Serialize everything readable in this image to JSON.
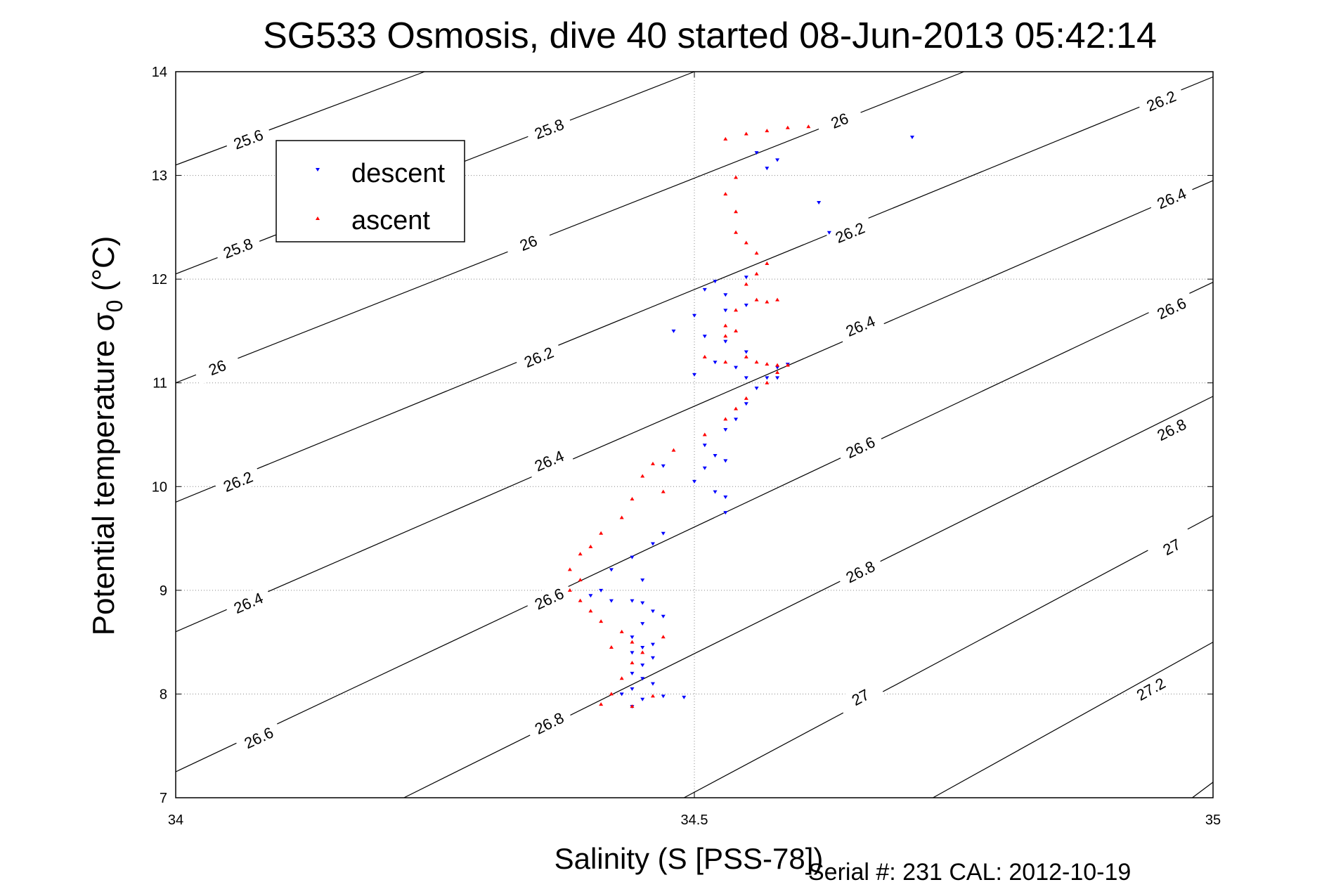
{
  "chart_data": {
    "type": "scatter",
    "title": "SG533 Osmosis, dive 40 started 08-Jun-2013 05:42:14",
    "xlabel": "Salinity (S [PSS-78])",
    "ylabel": "Potential temperature σ0 (°C)",
    "ylabel_main": "Potential temperature ",
    "ylabel_sigma": "σ",
    "ylabel_sub": "0",
    "ylabel_unit": " (°C)",
    "xlim": [
      34,
      35
    ],
    "ylim": [
      7,
      14
    ],
    "xticks": [
      34,
      34.5,
      35
    ],
    "xtick_labels": [
      "34",
      "34.5",
      "35"
    ],
    "yticks": [
      7,
      8,
      9,
      10,
      11,
      12,
      13,
      14
    ],
    "ytick_labels": [
      "7",
      "8",
      "9",
      "10",
      "11",
      "12",
      "13",
      "14"
    ],
    "grid": "dotted",
    "legend_position": "top-left",
    "footer": "Serial #: 231  CAL: 2012-10-19",
    "isopycnals": [
      {
        "sigma": "25.6",
        "points": [
          [
            34.0,
            13.1
          ],
          [
            34.24,
            14.0
          ]
        ],
        "label_at": [
          34.07,
          13.35
        ]
      },
      {
        "sigma": "25.8",
        "points": [
          [
            34.0,
            12.05
          ],
          [
            34.5,
            14.0
          ]
        ],
        "label_at": [
          34.06,
          12.3
        ]
      },
      {
        "sigma": "25.8",
        "points": [
          [
            34.0,
            12.05
          ],
          [
            34.5,
            14.0
          ]
        ],
        "label_at": [
          34.36,
          13.45
        ]
      },
      {
        "sigma": "26",
        "points": [
          [
            34.0,
            11.0
          ],
          [
            34.76,
            14.0
          ]
        ],
        "label_at": [
          34.04,
          11.15
        ]
      },
      {
        "sigma": "26",
        "points": [
          [
            34.0,
            11.0
          ],
          [
            34.76,
            14.0
          ]
        ],
        "label_at": [
          34.34,
          12.35
        ]
      },
      {
        "sigma": "26",
        "points": [
          [
            34.0,
            11.0
          ],
          [
            34.76,
            14.0
          ]
        ],
        "label_at": [
          34.64,
          13.53
        ]
      },
      {
        "sigma": "26.2",
        "points": [
          [
            34.0,
            9.85
          ],
          [
            35.0,
            13.95
          ]
        ],
        "label_at": [
          34.06,
          10.05
        ]
      },
      {
        "sigma": "26.2",
        "points": [
          [
            34.0,
            9.85
          ],
          [
            35.0,
            13.95
          ]
        ],
        "label_at": [
          34.35,
          11.25
        ]
      },
      {
        "sigma": "26.2",
        "points": [
          [
            34.0,
            9.85
          ],
          [
            35.0,
            13.95
          ]
        ],
        "label_at": [
          34.65,
          12.45
        ]
      },
      {
        "sigma": "26.2",
        "points": [
          [
            34.0,
            9.85
          ],
          [
            35.0,
            13.95
          ]
        ],
        "label_at": [
          34.95,
          13.72
        ]
      },
      {
        "sigma": "26.4",
        "points": [
          [
            34.0,
            8.6
          ],
          [
            35.0,
            12.95
          ]
        ],
        "label_at": [
          34.07,
          8.88
        ]
      },
      {
        "sigma": "26.4",
        "points": [
          [
            34.0,
            8.6
          ],
          [
            35.0,
            12.95
          ]
        ],
        "label_at": [
          34.36,
          10.25
        ]
      },
      {
        "sigma": "26.4",
        "points": [
          [
            34.0,
            8.6
          ],
          [
            35.0,
            12.95
          ]
        ],
        "label_at": [
          34.66,
          11.55
        ]
      },
      {
        "sigma": "26.4",
        "points": [
          [
            34.0,
            8.6
          ],
          [
            35.0,
            12.95
          ]
        ],
        "label_at": [
          34.96,
          12.78
        ]
      },
      {
        "sigma": "26.6",
        "points": [
          [
            34.0,
            7.25
          ],
          [
            35.0,
            11.97
          ]
        ],
        "label_at": [
          34.08,
          7.58
        ]
      },
      {
        "sigma": "26.6",
        "points": [
          [
            34.0,
            7.25
          ],
          [
            35.0,
            11.97
          ]
        ],
        "label_at": [
          34.36,
          8.92
        ]
      },
      {
        "sigma": "26.6",
        "points": [
          [
            34.0,
            7.25
          ],
          [
            35.0,
            11.97
          ]
        ],
        "label_at": [
          34.66,
          10.38
        ]
      },
      {
        "sigma": "26.6",
        "points": [
          [
            34.0,
            7.25
          ],
          [
            35.0,
            11.97
          ]
        ],
        "label_at": [
          34.96,
          11.72
        ]
      },
      {
        "sigma": "26.8",
        "points": [
          [
            34.22,
            7.0
          ],
          [
            35.0,
            10.87
          ]
        ],
        "label_at": [
          34.36,
          7.72
        ]
      },
      {
        "sigma": "26.8",
        "points": [
          [
            34.22,
            7.0
          ],
          [
            35.0,
            10.87
          ]
        ],
        "label_at": [
          34.66,
          9.18
        ]
      },
      {
        "sigma": "26.8",
        "points": [
          [
            34.22,
            7.0
          ],
          [
            35.0,
            10.87
          ]
        ],
        "label_at": [
          34.96,
          10.55
        ]
      },
      {
        "sigma": "27",
        "points": [
          [
            34.49,
            7.0
          ],
          [
            35.0,
            9.72
          ]
        ],
        "label_at": [
          34.66,
          7.97
        ]
      },
      {
        "sigma": "27",
        "points": [
          [
            34.49,
            7.0
          ],
          [
            35.0,
            9.72
          ]
        ],
        "label_at": [
          34.96,
          9.42
        ]
      },
      {
        "sigma": "27.2",
        "points": [
          [
            34.73,
            7.0
          ],
          [
            35.0,
            8.5
          ]
        ],
        "label_at": [
          34.94,
          8.05
        ]
      },
      {
        "sigma": "",
        "points": [
          [
            34.98,
            7.0
          ],
          [
            35.0,
            7.15
          ]
        ],
        "label_at": null
      }
    ],
    "series": [
      {
        "name": "descent",
        "color": "#0000ff",
        "marker": "triangle-down",
        "points": [
          [
            34.71,
            13.37
          ],
          [
            34.56,
            13.22
          ],
          [
            34.58,
            13.15
          ],
          [
            34.57,
            13.07
          ],
          [
            34.62,
            12.74
          ],
          [
            34.63,
            12.45
          ],
          [
            34.55,
            12.02
          ],
          [
            34.52,
            11.98
          ],
          [
            34.51,
            11.9
          ],
          [
            34.53,
            11.85
          ],
          [
            34.55,
            11.75
          ],
          [
            34.53,
            11.7
          ],
          [
            34.5,
            11.65
          ],
          [
            34.48,
            11.5
          ],
          [
            34.51,
            11.45
          ],
          [
            34.53,
            11.4
          ],
          [
            34.55,
            11.3
          ],
          [
            34.52,
            11.2
          ],
          [
            34.54,
            11.15
          ],
          [
            34.5,
            11.08
          ],
          [
            34.55,
            11.05
          ],
          [
            34.57,
            11.05
          ],
          [
            34.58,
            11.15
          ],
          [
            34.59,
            11.18
          ],
          [
            34.58,
            11.05
          ],
          [
            34.56,
            10.95
          ],
          [
            34.55,
            10.8
          ],
          [
            34.54,
            10.65
          ],
          [
            34.53,
            10.55
          ],
          [
            34.51,
            10.4
          ],
          [
            34.52,
            10.3
          ],
          [
            34.53,
            10.25
          ],
          [
            34.51,
            10.18
          ],
          [
            34.47,
            10.2
          ],
          [
            34.5,
            10.05
          ],
          [
            34.52,
            9.95
          ],
          [
            34.53,
            9.9
          ],
          [
            34.53,
            9.75
          ],
          [
            34.47,
            9.55
          ],
          [
            34.46,
            9.45
          ],
          [
            34.44,
            9.32
          ],
          [
            34.42,
            9.2
          ],
          [
            34.45,
            9.1
          ],
          [
            34.41,
            9.0
          ],
          [
            34.4,
            8.95
          ],
          [
            34.42,
            8.9
          ],
          [
            34.44,
            8.9
          ],
          [
            34.45,
            8.88
          ],
          [
            34.46,
            8.8
          ],
          [
            34.47,
            8.75
          ],
          [
            34.45,
            8.68
          ],
          [
            34.44,
            8.55
          ],
          [
            34.46,
            8.48
          ],
          [
            34.45,
            8.45
          ],
          [
            34.44,
            8.4
          ],
          [
            34.46,
            8.35
          ],
          [
            34.45,
            8.28
          ],
          [
            34.44,
            8.2
          ],
          [
            34.45,
            8.15
          ],
          [
            34.46,
            8.1
          ],
          [
            34.44,
            8.05
          ],
          [
            34.43,
            8.0
          ],
          [
            34.45,
            7.95
          ],
          [
            34.47,
            7.98
          ],
          [
            34.49,
            7.97
          ],
          [
            34.44,
            7.88
          ]
        ]
      },
      {
        "name": "ascent",
        "color": "#ff0000",
        "marker": "triangle-up",
        "points": [
          [
            34.61,
            13.47
          ],
          [
            34.59,
            13.46
          ],
          [
            34.57,
            13.43
          ],
          [
            34.55,
            13.4
          ],
          [
            34.53,
            13.35
          ],
          [
            34.54,
            12.98
          ],
          [
            34.53,
            12.82
          ],
          [
            34.54,
            12.65
          ],
          [
            34.54,
            12.45
          ],
          [
            34.55,
            12.35
          ],
          [
            34.56,
            12.25
          ],
          [
            34.57,
            12.15
          ],
          [
            34.56,
            12.05
          ],
          [
            34.55,
            11.95
          ],
          [
            34.56,
            11.8
          ],
          [
            34.57,
            11.78
          ],
          [
            34.58,
            11.8
          ],
          [
            34.54,
            11.7
          ],
          [
            34.53,
            11.55
          ],
          [
            34.54,
            11.5
          ],
          [
            34.53,
            11.45
          ],
          [
            34.51,
            11.25
          ],
          [
            34.53,
            11.2
          ],
          [
            34.55,
            11.25
          ],
          [
            34.56,
            11.2
          ],
          [
            34.57,
            11.18
          ],
          [
            34.58,
            11.17
          ],
          [
            34.59,
            11.17
          ],
          [
            34.58,
            11.1
          ],
          [
            34.57,
            11.0
          ],
          [
            34.55,
            10.85
          ],
          [
            34.54,
            10.75
          ],
          [
            34.53,
            10.65
          ],
          [
            34.51,
            10.5
          ],
          [
            34.48,
            10.35
          ],
          [
            34.46,
            10.22
          ],
          [
            34.45,
            10.1
          ],
          [
            34.47,
            9.95
          ],
          [
            34.44,
            9.88
          ],
          [
            34.43,
            9.7
          ],
          [
            34.41,
            9.55
          ],
          [
            34.4,
            9.42
          ],
          [
            34.39,
            9.35
          ],
          [
            34.38,
            9.2
          ],
          [
            34.39,
            9.1
          ],
          [
            34.38,
            9.0
          ],
          [
            34.39,
            8.9
          ],
          [
            34.4,
            8.8
          ],
          [
            34.41,
            8.7
          ],
          [
            34.43,
            8.6
          ],
          [
            34.44,
            8.5
          ],
          [
            34.42,
            8.45
          ],
          [
            34.45,
            8.4
          ],
          [
            34.47,
            8.55
          ],
          [
            34.44,
            8.3
          ],
          [
            34.43,
            8.15
          ],
          [
            34.42,
            8.0
          ],
          [
            34.41,
            7.9
          ],
          [
            34.44,
            7.88
          ],
          [
            34.46,
            7.98
          ]
        ]
      }
    ]
  }
}
